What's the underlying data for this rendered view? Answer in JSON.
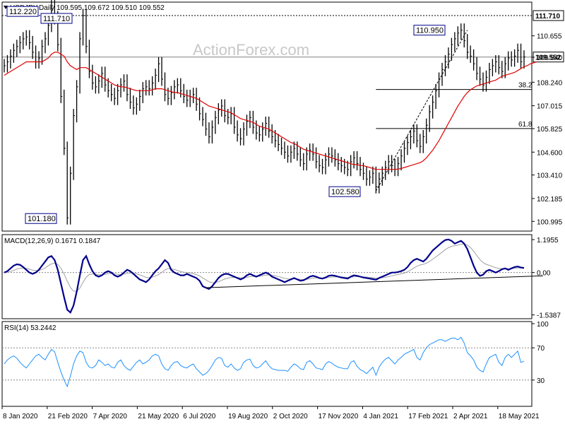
{
  "chart_data": {
    "type": "line",
    "price_panel": {
      "header": "USDJPY,Daily  109.595 109.672 109.510 109.552",
      "watermark": "ActionForex.com",
      "ylim": [
        100.6,
        112.3
      ],
      "y_ticks": [
        "110.655",
        "109.540",
        "108.240",
        "107.015",
        "105.825",
        "104.600",
        "103.410",
        "102.185",
        "100.995"
      ],
      "horizontal_levels": [
        {
          "label": "111.710",
          "value": 111.71,
          "style": "dotted"
        },
        {
          "label": "109.552",
          "value": 109.552,
          "style": "current"
        }
      ],
      "fib_levels": [
        {
          "label": "38.2",
          "value": 107.86
        },
        {
          "label": "61.8",
          "value": 105.83
        }
      ],
      "annotations": [
        {
          "label": "112.220",
          "date_index": 1,
          "value": 112.22
        },
        {
          "label": "111.710",
          "date_index": 25,
          "value": 111.71
        },
        {
          "label": "101.180",
          "date_index": 20,
          "value": 101.18
        },
        {
          "label": "110.950",
          "date_index": 147,
          "value": 110.95
        },
        {
          "label": "102.580",
          "date_index": 118,
          "value": 102.58
        }
      ],
      "trendline": {
        "from": {
          "date_index": 118,
          "value": 102.58
        },
        "to": {
          "date_index": 147,
          "value": 110.95
        }
      },
      "close_series": [
        109.1,
        109.3,
        109.6,
        109.9,
        110.1,
        110.3,
        110.5,
        110.6,
        110.3,
        109.8,
        109.3,
        109.5,
        110.1,
        110.5,
        111.2,
        112.22,
        111.6,
        110.2,
        107.5,
        104.8,
        101.18,
        103.5,
        106.5,
        108.0,
        110.5,
        111.71,
        110.1,
        108.8,
        108.2,
        108.0,
        108.3,
        108.7,
        108.1,
        107.8,
        107.6,
        107.4,
        107.8,
        108.1,
        108.3,
        107.6,
        107.2,
        106.9,
        107.1,
        107.5,
        107.9,
        108.0,
        107.9,
        108.2,
        108.6,
        109.2,
        108.4,
        107.6,
        107.4,
        107.7,
        108.0,
        108.1,
        107.8,
        107.5,
        107.3,
        107.5,
        107.6,
        107.1,
        106.6,
        106.3,
        105.8,
        105.4,
        105.9,
        106.4,
        106.8,
        107.0,
        106.5,
        106.4,
        106.6,
        105.9,
        105.5,
        105.3,
        105.8,
        106.2,
        106.4,
        105.9,
        105.6,
        105.5,
        105.8,
        106.1,
        105.7,
        105.4,
        105.2,
        105.0,
        104.8,
        104.6,
        104.4,
        104.6,
        104.8,
        104.5,
        104.2,
        104.0,
        104.5,
        104.7,
        104.5,
        104.1,
        103.9,
        103.8,
        104.2,
        104.5,
        104.4,
        104.2,
        104.0,
        103.9,
        103.8,
        103.7,
        104.1,
        104.3,
        104.0,
        103.7,
        103.5,
        103.2,
        103.3,
        103.5,
        102.8,
        103.2,
        103.5,
        103.8,
        104.1,
        103.9,
        103.7,
        104.0,
        104.4,
        104.8,
        105.1,
        105.4,
        105.7,
        105.2,
        104.9,
        105.4,
        106.0,
        106.7,
        107.2,
        107.8,
        108.4,
        108.9,
        109.3,
        109.7,
        110.2,
        110.5,
        110.8,
        110.95,
        110.4,
        109.8,
        109.6,
        109.2,
        108.7,
        108.4,
        108.1,
        108.5,
        108.9,
        109.1,
        109.3,
        109.0,
        108.8,
        109.2,
        109.5,
        109.4,
        109.6,
        109.9,
        109.3,
        109.552
      ],
      "ma_series": [
        108.6,
        108.7,
        108.8,
        108.9,
        109.0,
        109.1,
        109.2,
        109.3,
        109.3,
        109.3,
        109.3,
        109.3,
        109.3,
        109.4,
        109.5,
        109.7,
        109.8,
        109.8,
        109.7,
        109.6,
        109.3,
        109.1,
        109.0,
        108.9,
        109.0,
        109.0,
        109.0,
        108.9,
        108.8,
        108.7,
        108.6,
        108.5,
        108.4,
        108.3,
        108.2,
        108.1,
        108.05,
        108.0,
        108.0,
        107.95,
        107.9,
        107.85,
        107.8,
        107.8,
        107.8,
        107.8,
        107.8,
        107.85,
        107.9,
        107.9,
        107.9,
        107.85,
        107.8,
        107.75,
        107.7,
        107.7,
        107.65,
        107.6,
        107.55,
        107.5,
        107.45,
        107.4,
        107.3,
        107.2,
        107.1,
        107.0,
        106.95,
        106.9,
        106.85,
        106.8,
        106.75,
        106.7,
        106.65,
        106.55,
        106.45,
        106.35,
        106.3,
        106.25,
        106.2,
        106.15,
        106.05,
        105.95,
        105.9,
        105.85,
        105.8,
        105.7,
        105.6,
        105.5,
        105.4,
        105.3,
        105.2,
        105.1,
        105.05,
        104.95,
        104.85,
        104.75,
        104.7,
        104.65,
        104.6,
        104.55,
        104.5,
        104.45,
        104.4,
        104.35,
        104.3,
        104.25,
        104.2,
        104.15,
        104.1,
        104.05,
        104.0,
        103.95,
        103.95,
        103.9,
        103.9,
        103.85,
        103.8,
        103.75,
        103.7,
        103.7,
        103.7,
        103.7,
        103.7,
        103.7,
        103.7,
        103.72,
        103.75,
        103.8,
        103.85,
        103.9,
        103.95,
        104.0,
        104.05,
        104.15,
        104.3,
        104.5,
        104.7,
        104.95,
        105.2,
        105.5,
        105.8,
        106.1,
        106.4,
        106.7,
        107.0,
        107.25,
        107.5,
        107.7,
        107.85,
        107.95,
        108.05,
        108.1,
        108.15,
        108.2,
        108.25,
        108.3,
        108.35,
        108.45,
        108.55,
        108.6,
        108.65,
        108.7,
        108.75,
        108.85,
        108.95,
        109.05,
        109.1,
        109.2,
        109.25,
        109.3
      ]
    },
    "macd_panel": {
      "header": "MACD(12,26,9) 0.1671 0.1847",
      "ylim": [
        -1.6,
        1.3
      ],
      "y_ticks": [
        "1.1955",
        "0.00",
        "-1.5387"
      ],
      "macd_series": [
        0.0,
        0.05,
        0.15,
        0.25,
        0.3,
        0.28,
        0.2,
        0.1,
        0.0,
        -0.05,
        0.0,
        0.1,
        0.25,
        0.4,
        0.55,
        0.6,
        0.45,
        0.1,
        -0.4,
        -0.9,
        -1.35,
        -1.45,
        -1.2,
        -0.7,
        -0.1,
        0.45,
        0.6,
        0.3,
        0.05,
        -0.1,
        -0.15,
        -0.1,
        0.0,
        0.05,
        0.0,
        -0.1,
        -0.15,
        -0.1,
        0.0,
        0.1,
        0.05,
        -0.05,
        -0.15,
        -0.25,
        -0.3,
        -0.35,
        -0.25,
        -0.1,
        0.05,
        0.15,
        0.3,
        0.45,
        0.35,
        0.1,
        0.0,
        -0.05,
        -0.1,
        -0.1,
        -0.05,
        -0.1,
        -0.15,
        -0.2,
        -0.3,
        -0.5,
        -0.55,
        -0.6,
        -0.5,
        -0.35,
        -0.2,
        -0.1,
        -0.05,
        -0.05,
        -0.1,
        -0.15,
        -0.2,
        -0.25,
        -0.2,
        -0.1,
        -0.05,
        -0.1,
        -0.15,
        -0.1,
        -0.05,
        0.0,
        -0.05,
        -0.15,
        -0.2,
        -0.25,
        -0.3,
        -0.35,
        -0.3,
        -0.25,
        -0.2,
        -0.25,
        -0.3,
        -0.28,
        -0.22,
        -0.15,
        -0.12,
        -0.15,
        -0.2,
        -0.22,
        -0.18,
        -0.12,
        -0.1,
        -0.12,
        -0.15,
        -0.18,
        -0.2,
        -0.22,
        -0.15,
        -0.1,
        -0.12,
        -0.15,
        -0.18,
        -0.2,
        -0.22,
        -0.24,
        -0.26,
        -0.2,
        -0.15,
        -0.1,
        -0.05,
        0.0,
        0.0,
        0.02,
        0.05,
        0.1,
        0.2,
        0.35,
        0.45,
        0.5,
        0.45,
        0.4,
        0.5,
        0.65,
        0.8,
        0.9,
        1.0,
        1.1,
        1.18,
        1.2,
        1.15,
        1.05,
        1.1,
        1.15,
        1.05,
        0.85,
        0.55,
        0.25,
        0.0,
        -0.12,
        -0.08,
        0.05,
        0.1,
        0.05,
        0.0,
        0.05,
        0.12,
        0.15,
        0.1,
        0.15,
        0.2,
        0.22,
        0.18,
        0.1671
      ],
      "trendline": {
        "from": {
          "date_index": 64,
          "value": -0.55
        },
        "to": {
          "date_index": 171,
          "value": -0.12
        }
      }
    },
    "rsi_panel": {
      "header": "RSI(14) 53.2442",
      "ylim": [
        0,
        100
      ],
      "y_ticks": [
        "100",
        "70",
        "30",
        "0"
      ],
      "levels": [
        70,
        30
      ],
      "rsi_series": [
        50,
        55,
        58,
        60,
        57,
        52,
        48,
        45,
        50,
        55,
        60,
        62,
        58,
        55,
        62,
        68,
        65,
        52,
        40,
        30,
        22,
        35,
        50,
        60,
        66,
        64,
        52,
        46,
        45,
        48,
        55,
        52,
        48,
        50,
        46,
        45,
        52,
        55,
        48,
        44,
        42,
        47,
        52,
        55,
        50,
        52,
        55,
        60,
        62,
        60,
        50,
        44,
        42,
        48,
        52,
        53,
        48,
        46,
        45,
        48,
        50,
        44,
        40,
        36,
        38,
        42,
        48,
        55,
        58,
        57,
        48,
        46,
        50,
        45,
        42,
        44,
        52,
        55,
        56,
        48,
        45,
        46,
        50,
        54,
        48,
        44,
        43,
        42,
        42,
        42,
        41,
        46,
        50,
        48,
        44,
        43,
        52,
        54,
        50,
        45,
        44,
        43,
        50,
        53,
        51,
        48,
        46,
        45,
        44,
        44,
        52,
        54,
        47,
        43,
        41,
        38,
        42,
        46,
        36,
        46,
        52,
        56,
        58,
        54,
        50,
        55,
        58,
        62,
        64,
        66,
        68,
        58,
        55,
        64,
        70,
        74,
        76,
        78,
        80,
        80,
        78,
        80,
        82,
        82,
        80,
        83,
        76,
        64,
        60,
        55,
        46,
        42,
        40,
        50,
        58,
        60,
        62,
        52,
        48,
        58,
        62,
        58,
        62,
        66,
        52,
        53.24
      ]
    },
    "x_axis": {
      "tick_labels": [
        "8 Jan 2020",
        "21 Feb 2020",
        "7 Apr 2020",
        "21 May 2020",
        "6 Jul 2020",
        "19 Aug 2020",
        "2 Oct 2020",
        "17 Nov 2020",
        "4 Jan 2021",
        "17 Feb 2021",
        "2 Apr 2021",
        "18 May 2021"
      ]
    },
    "colors": {
      "price": "#000000",
      "ma": "#e00000",
      "macd_line": "#00008b",
      "macd_signal": "#a0a0a0",
      "rsi": "#1e90ff",
      "annotation_border": "#00008b",
      "level_line": "#000000"
    }
  }
}
